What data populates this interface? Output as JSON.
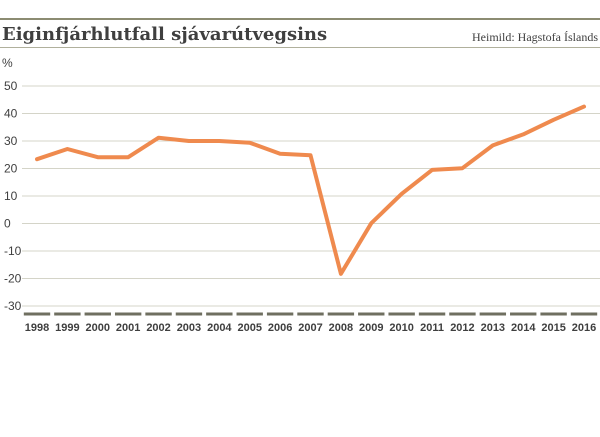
{
  "header": {
    "title": "Eiginfjárhlutfall sjávarútvegsins",
    "source": "Heimild: Hagstofa Íslands"
  },
  "chart_data": {
    "type": "line",
    "title": "Eiginfjárhlutfall sjávarútvegsins",
    "ylabel": "%",
    "xlabel": "",
    "ylim": [
      -30,
      50
    ],
    "yticks": [
      50,
      40,
      30,
      20,
      10,
      0,
      -10,
      -20,
      -30
    ],
    "grid": true,
    "x": [
      "1998",
      "1999",
      "2000",
      "2001",
      "2002",
      "2003",
      "2004",
      "2005",
      "2006",
      "2007",
      "2008",
      "2009",
      "2010",
      "2011",
      "2012",
      "2013",
      "2014",
      "2015",
      "2016"
    ],
    "series": [
      {
        "values": [
          23.4,
          27.1,
          24.1,
          24.1,
          31.2,
          30.0,
          30.0,
          29.4,
          25.4,
          24.8,
          -18.3,
          0.1,
          10.8,
          19.5,
          20.1,
          28.4,
          32.4,
          37.7,
          42.5
        ],
        "color": "#ef8a4e"
      }
    ],
    "colors": {
      "line": "#ef8a4e",
      "grid": "#d4d4c8",
      "baseline": "#6f6f60",
      "text": "#3f3f3f"
    }
  }
}
